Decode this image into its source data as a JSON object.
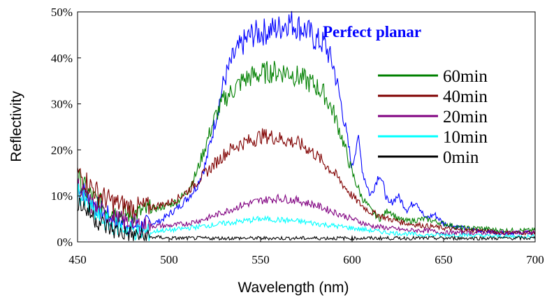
{
  "chart_data": {
    "type": "line",
    "xlabel": "Wavelength (nm)",
    "ylabel": "Reflectivity",
    "xlim": [
      450,
      700
    ],
    "ylim": [
      0,
      50
    ],
    "xticks": [
      450,
      500,
      550,
      600,
      650,
      700
    ],
    "yticks": [
      0,
      10,
      20,
      30,
      40,
      50
    ],
    "ytick_labels": [
      "0%",
      "10%",
      "20%",
      "30%",
      "40%",
      "50%"
    ],
    "grid": false,
    "legend_position": "right",
    "series": [
      {
        "name": "",
        "annotation": "Perfect planar",
        "color": "#0000ff",
        "x": [
          450,
          455,
          460,
          465,
          470,
          475,
          480,
          485,
          490,
          495,
          500,
          505,
          510,
          515,
          520,
          525,
          530,
          535,
          540,
          545,
          550,
          555,
          560,
          565,
          570,
          575,
          580,
          585,
          590,
          595,
          600,
          603,
          606,
          610,
          615,
          620,
          625,
          630,
          635,
          640,
          645,
          650,
          660,
          670,
          680,
          690,
          700
        ],
        "y": [
          13,
          10,
          8,
          6,
          5,
          4,
          3.5,
          3.5,
          4,
          4.5,
          6,
          7.5,
          9.5,
          12,
          17,
          26,
          35,
          40,
          43,
          45,
          45.5,
          46,
          46.5,
          48,
          47,
          46,
          44,
          43,
          38,
          28,
          16,
          23,
          15,
          10,
          15,
          8,
          10,
          7,
          9,
          5,
          6,
          4,
          3,
          2.5,
          2,
          2,
          2
        ]
      },
      {
        "name": "60min",
        "color": "#008000",
        "x": [
          450,
          455,
          460,
          465,
          470,
          475,
          480,
          485,
          490,
          495,
          500,
          505,
          510,
          515,
          520,
          525,
          530,
          535,
          540,
          545,
          550,
          555,
          560,
          565,
          570,
          575,
          580,
          585,
          590,
          595,
          600,
          605,
          610,
          615,
          620,
          625,
          630,
          640,
          650,
          660,
          670,
          680,
          690,
          700
        ],
        "y": [
          14,
          11,
          9,
          7.5,
          6.5,
          6,
          6,
          6.5,
          7,
          7.5,
          8,
          9,
          11,
          15,
          21,
          27,
          31,
          33,
          35,
          36,
          36.5,
          37,
          37,
          37,
          36,
          35,
          34,
          32,
          28,
          22,
          15,
          10,
          7,
          5,
          7,
          5,
          4.5,
          5,
          4,
          3,
          3,
          2.5,
          2.5,
          2.5
        ]
      },
      {
        "name": "40min",
        "color": "#800000",
        "x": [
          450,
          455,
          460,
          465,
          470,
          475,
          480,
          485,
          490,
          495,
          500,
          505,
          510,
          515,
          520,
          525,
          530,
          535,
          540,
          545,
          550,
          555,
          560,
          565,
          570,
          575,
          580,
          585,
          590,
          595,
          600,
          605,
          610,
          620,
          630,
          640,
          650,
          660,
          670,
          680,
          690,
          700
        ],
        "y": [
          15,
          13,
          11,
          9.5,
          8.5,
          8,
          7.5,
          7.5,
          7.5,
          8,
          8.5,
          9.5,
          11,
          13,
          15,
          17,
          19,
          20.5,
          21.5,
          22,
          23,
          23,
          22.5,
          22,
          21.5,
          20.5,
          19,
          17,
          15,
          12.5,
          10,
          8,
          6.5,
          5,
          4,
          3.5,
          3,
          2.5,
          2.5,
          2,
          2,
          2
        ]
      },
      {
        "name": "20min",
        "color": "#800080",
        "x": [
          450,
          455,
          460,
          465,
          470,
          475,
          480,
          485,
          490,
          495,
          500,
          510,
          520,
          530,
          540,
          550,
          560,
          570,
          580,
          590,
          600,
          610,
          620,
          630,
          640,
          650,
          660,
          670,
          680,
          690,
          700
        ],
        "y": [
          12,
          9,
          7,
          6,
          5,
          4.5,
          4,
          3.5,
          3.5,
          3.5,
          3.5,
          4,
          5,
          6.5,
          8,
          9,
          9.5,
          9,
          8,
          6.5,
          5,
          3.5,
          3,
          2.5,
          2.5,
          2,
          2,
          2,
          2,
          2,
          2
        ]
      },
      {
        "name": "10min",
        "color": "#00ffff",
        "x": [
          450,
          455,
          460,
          465,
          470,
          475,
          480,
          485,
          490,
          495,
          500,
          510,
          520,
          530,
          540,
          550,
          560,
          570,
          580,
          590,
          600,
          610,
          620,
          640,
          660,
          680,
          700
        ],
        "y": [
          11,
          8,
          6,
          4.5,
          3.5,
          3,
          2.5,
          2,
          2,
          2.5,
          2.5,
          3,
          3.5,
          4,
          4.5,
          5,
          4.8,
          4.5,
          4,
          3.5,
          3,
          2.5,
          2,
          1.5,
          1.5,
          1.2,
          1.2
        ]
      },
      {
        "name": "0min",
        "color": "#000000",
        "x": [
          450,
          455,
          460,
          465,
          470,
          475,
          480,
          485,
          490,
          495,
          500,
          510,
          520,
          540,
          560,
          580,
          600,
          620,
          640,
          660,
          680,
          700
        ],
        "y": [
          9,
          7,
          5,
          3.5,
          2.5,
          2,
          1.5,
          1.2,
          1,
          1,
          0.8,
          0.8,
          0.8,
          0.8,
          0.8,
          0.8,
          0.8,
          0.8,
          0.8,
          0.8,
          0.8,
          0.8
        ]
      }
    ]
  }
}
